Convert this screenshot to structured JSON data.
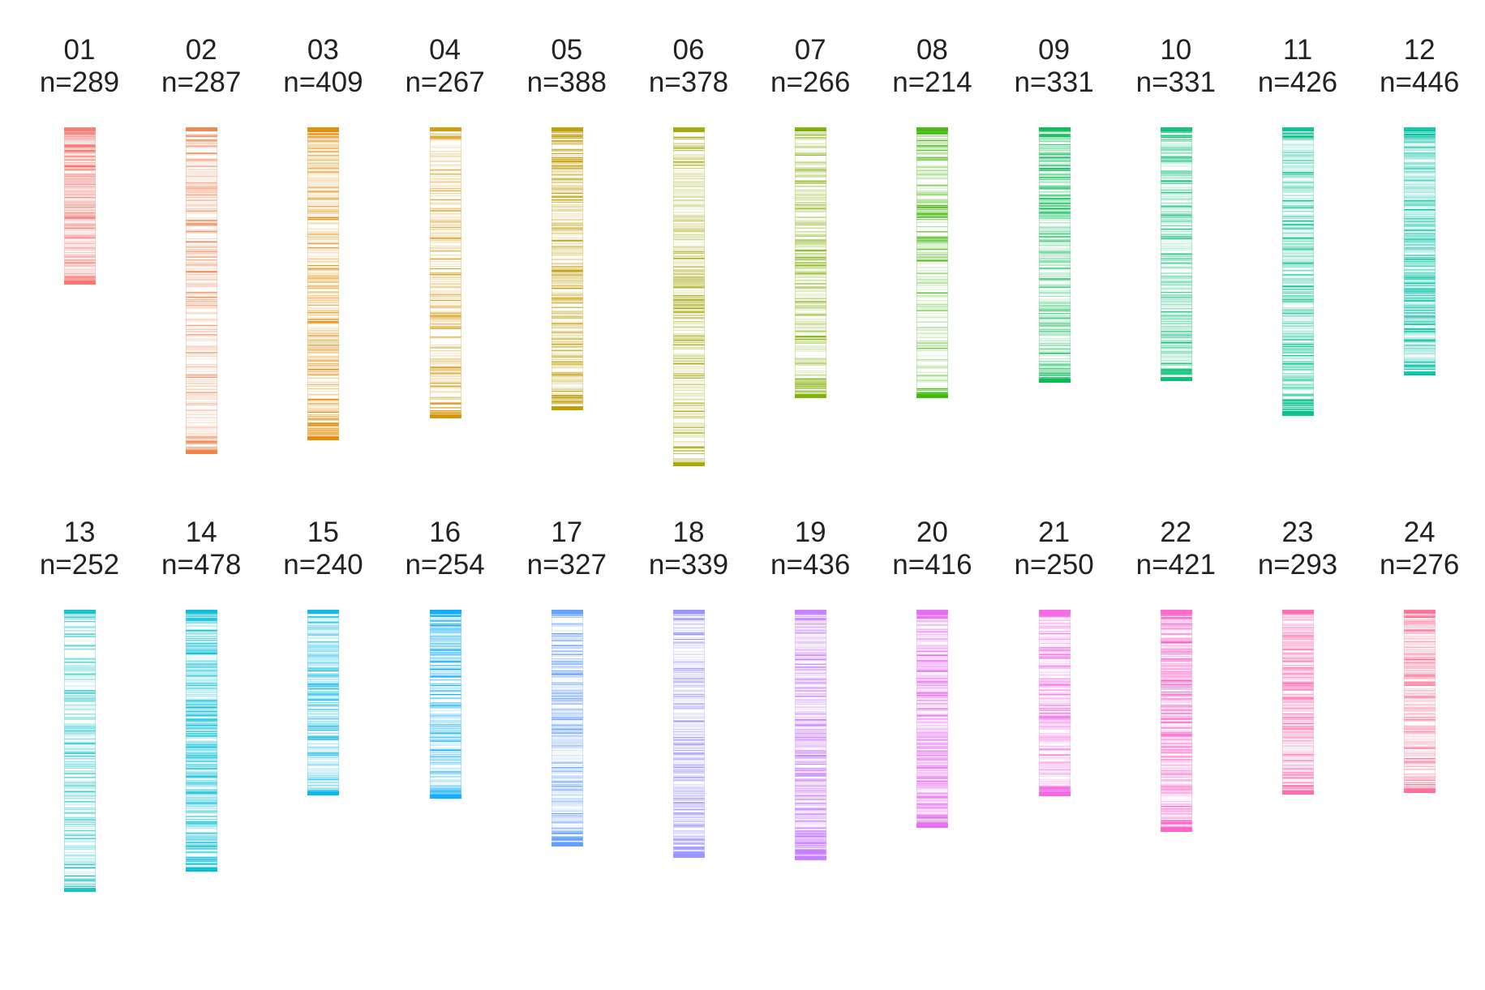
{
  "chart_data": {
    "type": "barcode",
    "grid": false,
    "legend": "none",
    "panels": [
      {
        "id": "01",
        "n_label": "n=289",
        "color": "#F8766D",
        "length": 0.464
      },
      {
        "id": "02",
        "n_label": "n=287",
        "color": "#EF7F45",
        "length": 0.965
      },
      {
        "id": "03",
        "n_label": "n=409",
        "color": "#E38900",
        "length": 0.923
      },
      {
        "id": "04",
        "n_label": "n=267",
        "color": "#D49200",
        "length": 0.86
      },
      {
        "id": "05",
        "n_label": "n=388",
        "color": "#C09B00",
        "length": 0.835
      },
      {
        "id": "06",
        "n_label": "n=378",
        "color": "#A3A500",
        "length": 1.0
      },
      {
        "id": "07",
        "n_label": "n=266",
        "color": "#7CAE00",
        "length": 0.799
      },
      {
        "id": "08",
        "n_label": "n=214",
        "color": "#39B600",
        "length": 0.799
      },
      {
        "id": "09",
        "n_label": "n=331",
        "color": "#00BB4E",
        "length": 0.754
      },
      {
        "id": "10",
        "n_label": "n=331",
        "color": "#00BE70",
        "length": 0.749
      },
      {
        "id": "11",
        "n_label": "n=426",
        "color": "#00C08B",
        "length": 0.852
      },
      {
        "id": "12",
        "n_label": "n=446",
        "color": "#00C1A3",
        "length": 0.731
      },
      {
        "id": "13",
        "n_label": "n=252",
        "color": "#00BFC4",
        "length": 0.832
      },
      {
        "id": "14",
        "n_label": "n=478",
        "color": "#00BDD8",
        "length": 0.772
      },
      {
        "id": "15",
        "n_label": "n=240",
        "color": "#00B6EB",
        "length": 0.548
      },
      {
        "id": "16",
        "n_label": "n=254",
        "color": "#00A9FF",
        "length": 0.557
      },
      {
        "id": "17",
        "n_label": "n=327",
        "color": "#619CFF",
        "length": 0.698
      },
      {
        "id": "18",
        "n_label": "n=339",
        "color": "#9590FF",
        "length": 0.733
      },
      {
        "id": "19",
        "n_label": "n=436",
        "color": "#C77CFF",
        "length": 0.74
      },
      {
        "id": "20",
        "n_label": "n=416",
        "color": "#E76BF3",
        "length": 0.644
      },
      {
        "id": "21",
        "n_label": "n=250",
        "color": "#F564E3",
        "length": 0.551
      },
      {
        "id": "22",
        "n_label": "n=421",
        "color": "#FF61C9",
        "length": 0.656
      },
      {
        "id": "23",
        "n_label": "n=293",
        "color": "#FF65AE",
        "length": 0.546
      },
      {
        "id": "24",
        "n_label": "n=276",
        "color": "#FF6C91",
        "length": 0.54
      }
    ]
  }
}
